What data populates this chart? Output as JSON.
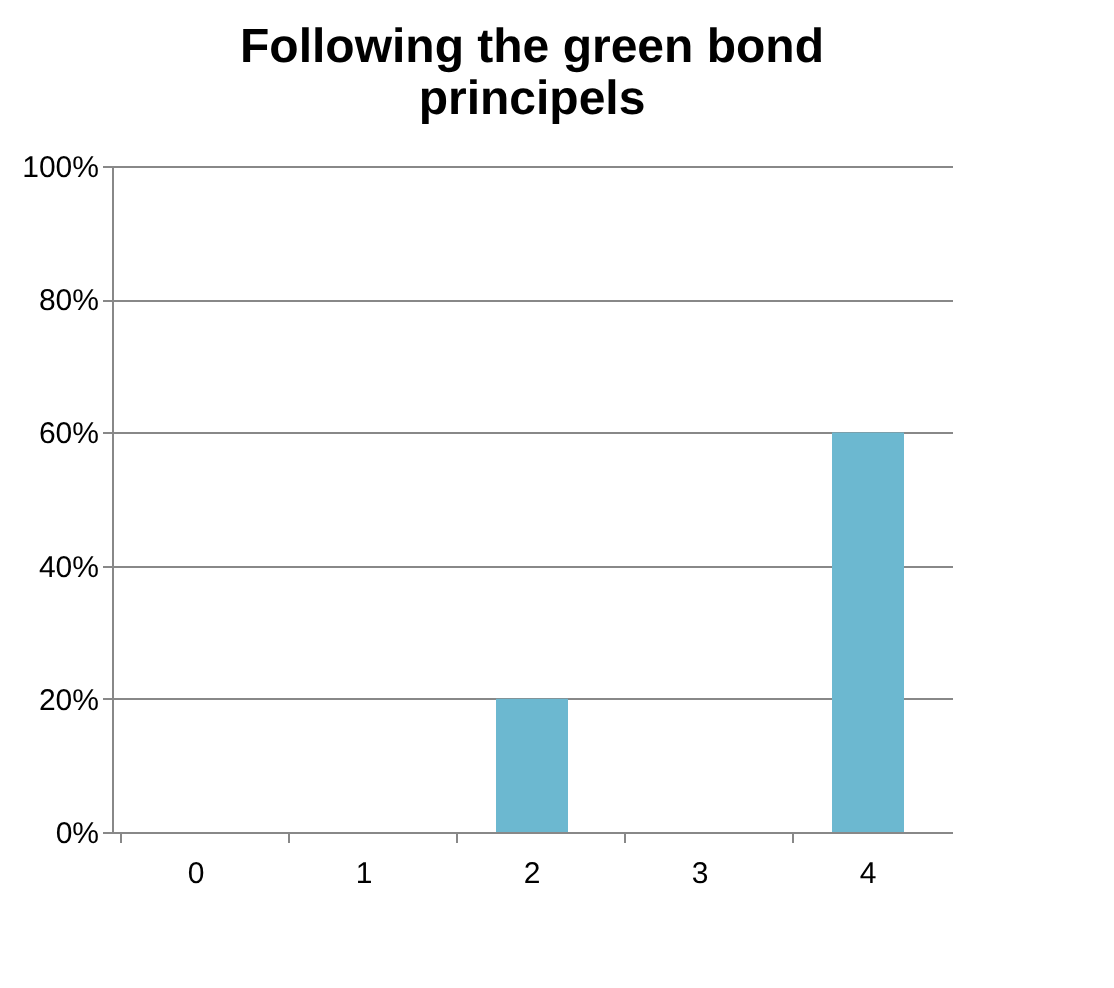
{
  "chart_data": {
    "type": "bar",
    "title": "Following the green bond principels",
    "categories": [
      "0",
      "1",
      "2",
      "3",
      "4"
    ],
    "series": [
      {
        "color": "#6cb8d0",
        "values": [
          0,
          0,
          20,
          0,
          60
        ]
      }
    ],
    "ylim": [
      0,
      100
    ],
    "yticks": [
      {
        "value": 0,
        "label": "0%"
      },
      {
        "value": 20,
        "label": "20%"
      },
      {
        "value": 40,
        "label": "40%"
      },
      {
        "value": 60,
        "label": "60%"
      },
      {
        "value": 80,
        "label": "80%"
      },
      {
        "value": 100,
        "label": "100%"
      }
    ],
    "grid": "y",
    "legend": false
  }
}
